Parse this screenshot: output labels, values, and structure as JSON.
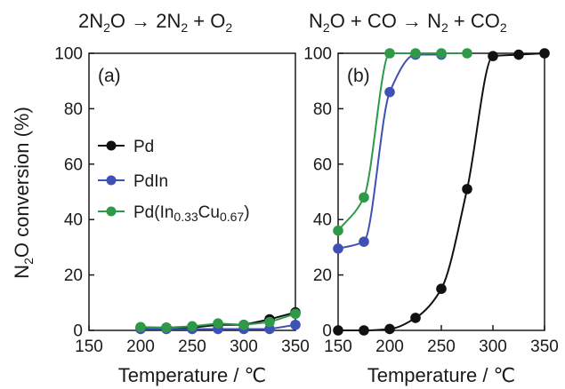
{
  "chart_data": [
    {
      "type": "scatter",
      "panel": "a",
      "panel_label": "(a)",
      "title": {
        "base": "2N",
        "sub1": "2",
        "mid": "O → 2N",
        "sub2": "2",
        "tail": " + O",
        "sub3": "2"
      },
      "xlabel": "Temperature / ℃",
      "ylabel": {
        "base": "N",
        "sub": "2",
        "tail": "O conversion (%)"
      },
      "xlim": [
        150,
        350
      ],
      "ylim": [
        0,
        100
      ],
      "xticks": [
        "150",
        "200",
        "250",
        "300",
        "350"
      ],
      "yticks": [
        "0",
        "20",
        "40",
        "60",
        "80",
        "100"
      ],
      "legend": {
        "position": "left-middle",
        "entries": [
          {
            "series": "Pd",
            "text": "Pd"
          },
          {
            "series": "PdIn",
            "text": "PdIn"
          },
          {
            "series": "Pd(In0.33Cu0.67)",
            "text_parts": [
              "Pd(In",
              "0.33",
              "Cu",
              "0.67",
              ")"
            ]
          }
        ]
      },
      "series": [
        {
          "name": "Pd",
          "color": "#111111",
          "x": [
            200,
            225,
            250,
            275,
            300,
            325,
            350
          ],
          "y": [
            1,
            1,
            1,
            2,
            2,
            4,
            6.5
          ]
        },
        {
          "name": "PdIn",
          "color": "#3f51b5",
          "x": [
            200,
            225,
            250,
            275,
            300,
            325,
            350
          ],
          "y": [
            0.5,
            0.5,
            0.5,
            0.5,
            0.5,
            0.5,
            2
          ]
        },
        {
          "name": "Pd(In0.33Cu0.67)",
          "color": "#2e9a49",
          "x": [
            200,
            225,
            250,
            275,
            300,
            325,
            350
          ],
          "y": [
            1.2,
            1,
            1.5,
            2.5,
            2,
            3,
            6
          ]
        }
      ]
    },
    {
      "type": "line",
      "panel": "b",
      "panel_label": "(b)",
      "title": {
        "base": "N",
        "sub1": "2",
        "mid": "O + CO → N",
        "sub2": "2",
        "tail": " + CO",
        "sub3": "2"
      },
      "xlabel": "Temperature / ℃",
      "xlim": [
        150,
        350
      ],
      "ylim": [
        0,
        100
      ],
      "xticks": [
        "150",
        "200",
        "250",
        "300",
        "350"
      ],
      "yticks": [
        "0",
        "20",
        "40",
        "60",
        "80",
        "100"
      ],
      "series": [
        {
          "name": "Pd",
          "color": "#111111",
          "x": [
            150,
            175,
            200,
            225,
            250,
            275,
            300,
            325,
            350
          ],
          "y": [
            0,
            0,
            0.5,
            4.5,
            15,
            51,
            99,
            99.5,
            100
          ]
        },
        {
          "name": "PdIn",
          "color": "#3f51b5",
          "x": [
            150,
            175,
            200,
            225,
            250
          ],
          "y": [
            29.5,
            32,
            86,
            99.5,
            99.5
          ]
        },
        {
          "name": "Pd(In0.33Cu0.67)",
          "color": "#2e9a49",
          "x": [
            150,
            175,
            200,
            225,
            250,
            275
          ],
          "y": [
            36,
            48,
            100,
            100,
            100,
            100
          ]
        }
      ]
    }
  ]
}
